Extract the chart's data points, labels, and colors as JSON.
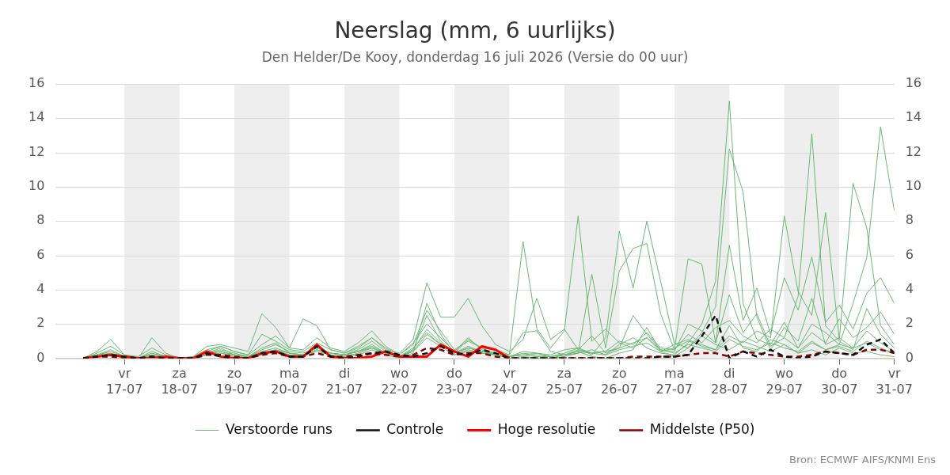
{
  "chart_data": {
    "type": "line",
    "title": "Neerslag (mm, 6 uurlijks)",
    "subtitle": "Den Helder/De Kooy, donderdag 16 juli 2026 (Versie do 00 uur)",
    "annotations": [
      "Bron: ECMWF AIFS/KNMI Ens"
    ],
    "x": [
      "2026-07-16T06:00",
      "2026-07-16T12:00",
      "2026-07-16T18:00",
      "2026-07-17T00:00",
      "2026-07-17T06:00",
      "2026-07-17T12:00",
      "2026-07-17T18:00",
      "2026-07-18T00:00",
      "2026-07-18T06:00",
      "2026-07-18T12:00",
      "2026-07-18T18:00",
      "2026-07-19T00:00",
      "2026-07-19T06:00",
      "2026-07-19T12:00",
      "2026-07-19T18:00",
      "2026-07-20T00:00",
      "2026-07-20T06:00",
      "2026-07-20T12:00",
      "2026-07-20T18:00",
      "2026-07-21T00:00",
      "2026-07-21T06:00",
      "2026-07-21T12:00",
      "2026-07-21T18:00",
      "2026-07-22T00:00",
      "2026-07-22T06:00",
      "2026-07-22T12:00",
      "2026-07-22T18:00",
      "2026-07-23T00:00",
      "2026-07-23T06:00",
      "2026-07-23T12:00",
      "2026-07-23T18:00",
      "2026-07-24T00:00",
      "2026-07-24T06:00",
      "2026-07-24T12:00",
      "2026-07-24T18:00",
      "2026-07-25T00:00",
      "2026-07-25T06:00",
      "2026-07-25T12:00",
      "2026-07-25T18:00",
      "2026-07-26T00:00",
      "2026-07-26T06:00",
      "2026-07-26T12:00",
      "2026-07-26T18:00",
      "2026-07-27T00:00",
      "2026-07-27T06:00",
      "2026-07-27T12:00",
      "2026-07-27T18:00",
      "2026-07-28T00:00",
      "2026-07-28T06:00",
      "2026-07-28T12:00",
      "2026-07-28T18:00",
      "2026-07-29T00:00",
      "2026-07-29T06:00",
      "2026-07-29T12:00",
      "2026-07-29T18:00",
      "2026-07-30T00:00",
      "2026-07-30T06:00",
      "2026-07-30T12:00",
      "2026-07-30T18:00",
      "2026-07-31T00:00"
    ],
    "series": [
      {
        "name": "Verstoorde runs",
        "color": "#6ab874",
        "values": [
          0,
          0.2,
          0.4,
          0.1,
          0,
          0.2,
          0.1,
          0,
          0,
          0.3,
          0.5,
          0.3,
          0.1,
          0.5,
          0.8,
          0.4,
          0.3,
          0.6,
          0.3,
          0.2,
          0.4,
          0.8,
          0.3,
          0.1,
          0.6,
          1.5,
          0.8,
          0.2,
          0.4,
          0.3,
          0.2,
          0.1,
          0.2,
          0.1,
          0,
          0.1,
          0.3,
          0.5,
          0.2,
          0.8,
          1.2,
          0.6,
          0.3,
          0.2,
          0.9,
          2.0,
          4.5,
          15.0,
          3.2,
          1.1,
          0.8,
          2.1,
          0.6,
          1.5,
          0.9,
          2.3,
          1.2,
          1.8,
          2.7,
          1.4
        ]
      },
      {
        "color": "#6ab874",
        "values": [
          0,
          0.1,
          0.2,
          0,
          0,
          0.1,
          0,
          0,
          0,
          0.2,
          0.3,
          0.1,
          0,
          0.2,
          0.4,
          0.2,
          0.1,
          0.5,
          0.2,
          0.1,
          0.2,
          0.5,
          0.2,
          0,
          0.3,
          3.2,
          1.4,
          0.3,
          1.1,
          0.6,
          0.2,
          0,
          0.1,
          0,
          0,
          0.2,
          0.4,
          0.1,
          0,
          0.3,
          0.5,
          1.8,
          0.4,
          0.1,
          0.6,
          1.5,
          3.0,
          12.2,
          9.7,
          2.4,
          0.5,
          1.8,
          1.0,
          3.5,
          0.8,
          1.2,
          0.6,
          1.6,
          0.9,
          0.4
        ]
      },
      {
        "color": "#6ab874",
        "values": [
          0,
          0.3,
          0.7,
          0.2,
          0.1,
          0.6,
          0.2,
          0,
          0.1,
          0.5,
          0.7,
          0.4,
          0.2,
          0.8,
          1.3,
          0.6,
          0.5,
          1.2,
          0.6,
          0.4,
          0.9,
          1.6,
          0.7,
          0.2,
          0.9,
          2.0,
          1.2,
          0.4,
          1.2,
          0.5,
          0.3,
          0.2,
          1.5,
          1.6,
          0.4,
          0.2,
          0.5,
          1.3,
          0.3,
          0.6,
          2.5,
          1.4,
          0.5,
          0.4,
          2.0,
          1.6,
          0.9,
          3.7,
          1.5,
          2.6,
          0.7,
          1.2,
          3.6,
          13.1,
          1.9,
          1.0,
          0.5,
          2.9,
          1.4,
          0.6
        ]
      },
      {
        "color": "#6ab874",
        "values": [
          0,
          0.1,
          0.3,
          0.1,
          0,
          0.4,
          0.1,
          0,
          0,
          0.3,
          0.6,
          0.2,
          0.1,
          0.6,
          0.9,
          0.3,
          0.2,
          0.7,
          0.3,
          0.2,
          0.5,
          1.0,
          0.4,
          0.1,
          0.5,
          2.5,
          1.0,
          0.3,
          0.7,
          0.4,
          0.2,
          0.1,
          0.3,
          0.2,
          0.1,
          0.3,
          0.6,
          0.3,
          0.4,
          1.0,
          0.8,
          1.5,
          0.6,
          0.5,
          1.4,
          0.9,
          1.8,
          2.2,
          1.3,
          0.9,
          1.7,
          1.2,
          0.6,
          2.0,
          1.5,
          0.8,
          3.2,
          5.9,
          13.5,
          8.6
        ]
      },
      {
        "color": "#6ab874",
        "values": [
          0,
          0.2,
          0.5,
          0.1,
          0,
          0.3,
          0.1,
          0,
          0,
          0.4,
          0.7,
          0.4,
          0.2,
          1.4,
          1.0,
          0.5,
          0.4,
          0.9,
          0.5,
          0.3,
          0.7,
          1.2,
          0.6,
          0.2,
          0.8,
          2.8,
          1.6,
          0.5,
          1.0,
          0.6,
          0.5,
          0.2,
          6.8,
          1.7,
          0.6,
          1.6,
          8.3,
          1.0,
          1.7,
          0.9,
          0.6,
          1.2,
          0.4,
          0.8,
          1.1,
          0.7,
          0.5,
          1.9,
          0.6,
          0.4,
          1.1,
          0.8,
          0.3,
          0.9,
          0.5,
          0.7,
          0.4,
          1.0,
          0.6,
          0.3
        ]
      },
      {
        "color": "#6ab874",
        "values": [
          0,
          0.1,
          0.2,
          0,
          0,
          0.1,
          0,
          0,
          0,
          0.2,
          0.3,
          0.2,
          0,
          0.3,
          0.5,
          0.2,
          0.2,
          0.4,
          0.2,
          0.1,
          0.3,
          0.6,
          0.3,
          0.1,
          0.4,
          1.2,
          0.7,
          0.2,
          0.5,
          0.3,
          0.2,
          0.1,
          0.4,
          0.3,
          0.2,
          0.5,
          0.6,
          0.2,
          1.2,
          7.4,
          4.1,
          8.0,
          4.5,
          0.9,
          0.6,
          1.3,
          0.8,
          0.5,
          1.0,
          0.7,
          0.4,
          0.8,
          0.3,
          0.5,
          0.2,
          0.6,
          0.3,
          0.4,
          0.2,
          0.1
        ]
      },
      {
        "color": "#6ab874",
        "values": [
          0,
          0.2,
          0.3,
          0.1,
          0,
          0.2,
          0.1,
          0,
          0,
          0.2,
          0.4,
          0.2,
          0.1,
          0.4,
          0.6,
          0.3,
          0.2,
          0.5,
          0.3,
          0.2,
          0.4,
          0.7,
          0.3,
          0.1,
          0.5,
          1.7,
          0.9,
          0.3,
          0.6,
          0.4,
          0.3,
          0.1,
          0.2,
          0.3,
          0.1,
          0.2,
          0.4,
          0.3,
          0.2,
          0.5,
          0.7,
          0.9,
          0.4,
          0.6,
          1.0,
          0.8,
          0.5,
          1.3,
          0.9,
          1.6,
          1.2,
          8.3,
          3.9,
          2.5,
          8.5,
          1.1,
          10.2,
          7.6,
          1.9,
          0.8
        ]
      },
      {
        "color": "#6ab874",
        "values": [
          0,
          0.4,
          1.1,
          0.2,
          0,
          1.2,
          0.3,
          0,
          0.1,
          0.7,
          0.8,
          0.6,
          0.4,
          2.6,
          1.8,
          0.6,
          2.3,
          1.9,
          0.5,
          0.3,
          0.6,
          1.2,
          0.5,
          0.3,
          1.1,
          4.4,
          2.4,
          2.4,
          3.5,
          1.9,
          0.8,
          0.4,
          1.1,
          3.5,
          1.1,
          1.7,
          0.5,
          0.3,
          0.4,
          0.6,
          0.9,
          1.2,
          0.5,
          0.3,
          0.8,
          0.6,
          0.4,
          1.1,
          0.7,
          0.5,
          0.9,
          0.6,
          0.4,
          1.0,
          0.5,
          0.8,
          0.6,
          0.9,
          0.5,
          0.3
        ]
      },
      {
        "color": "#6ab874",
        "values": [
          0,
          0.1,
          0.2,
          0,
          0,
          0.1,
          0,
          0,
          0,
          0.3,
          0.4,
          0.2,
          0.1,
          0.3,
          0.5,
          0.3,
          0.2,
          0.6,
          0.3,
          0.2,
          0.4,
          0.6,
          0.3,
          0.1,
          0.4,
          1.4,
          0.8,
          0.3,
          0.6,
          0.4,
          0.2,
          0.1,
          0.2,
          0.1,
          0.1,
          0.2,
          0.3,
          4.9,
          0.6,
          5.1,
          6.4,
          6.7,
          2.6,
          0.5,
          5.8,
          5.5,
          0.9,
          6.6,
          2.2,
          4.1,
          1.4,
          4.7,
          2.8,
          5.9,
          2.1,
          3.1,
          1.7,
          3.8,
          4.7,
          3.2
        ]
      },
      {
        "name": "Controle",
        "color": "#111111",
        "line_style": "dashed",
        "values": [
          0,
          0.1,
          0.2,
          0.1,
          0,
          0.1,
          0,
          0,
          0,
          0.3,
          0.1,
          0,
          0,
          0.3,
          0.4,
          0.1,
          0.1,
          0.7,
          0.1,
          0,
          0.1,
          0.3,
          0.4,
          0.2,
          0.1,
          0.3,
          0.7,
          0.3,
          0.2,
          0.5,
          0.3,
          0,
          0,
          0,
          0,
          0,
          0,
          0,
          0,
          0,
          0,
          0,
          0.1,
          0.1,
          0.2,
          1.3,
          2.5,
          0,
          0.4,
          0.1,
          0.5,
          0.1,
          0,
          0.1,
          0.4,
          0.3,
          0.2,
          0.8,
          1.1,
          0.3
        ]
      },
      {
        "name": "Hoge resolutie",
        "color": "#ff0000",
        "values": [
          0,
          0.1,
          0.2,
          0.1,
          0,
          0,
          0.1,
          0,
          0,
          0.4,
          0.1,
          0,
          0,
          0.3,
          0.4,
          0.1,
          0.1,
          0.8,
          0.1,
          0,
          0,
          0.1,
          0.4,
          0.1,
          0.1,
          0.1,
          0.8,
          0.4,
          0.1,
          0.7,
          0.5,
          0,
          null,
          null,
          null,
          null,
          null,
          null,
          null,
          null,
          null,
          null,
          null,
          null,
          null,
          null,
          null,
          null,
          null,
          null,
          null,
          null,
          null,
          null,
          null,
          null,
          null,
          null,
          null,
          null
        ]
      },
      {
        "name": "Middelste (P50)",
        "color": "#8b0000",
        "line_style": "dashed",
        "values": [
          0,
          0.1,
          0.1,
          0,
          0,
          0.1,
          0,
          0,
          0,
          0.2,
          0.2,
          0.1,
          0,
          0.2,
          0.3,
          0.1,
          0.1,
          0.3,
          0.1,
          0.1,
          0.2,
          0.3,
          0.2,
          0.1,
          0.2,
          0.6,
          0.5,
          0.2,
          0.3,
          0.3,
          0.1,
          0,
          0,
          0,
          0,
          0,
          0,
          0,
          0,
          0,
          0.1,
          0.1,
          0.1,
          0.1,
          0.2,
          0.3,
          0.3,
          0.1,
          0.4,
          0.3,
          0.2,
          0.1,
          0.1,
          0.2,
          0.4,
          0.3,
          0.2,
          0.5,
          0.5,
          0.3
        ]
      }
    ],
    "xlim": [
      "2026-07-15T18:00",
      "2026-07-31T00:00"
    ],
    "xticks": [
      {
        "value": "2026-07-17T00:00",
        "label": "vr\n17-07"
      },
      {
        "value": "2026-07-18T00:00",
        "label": "za\n18-07"
      },
      {
        "value": "2026-07-19T00:00",
        "label": "zo\n19-07"
      },
      {
        "value": "2026-07-20T00:00",
        "label": "ma\n20-07"
      },
      {
        "value": "2026-07-21T00:00",
        "label": "di\n21-07"
      },
      {
        "value": "2026-07-22T00:00",
        "label": "wo\n22-07"
      },
      {
        "value": "2026-07-23T00:00",
        "label": "do\n23-07"
      },
      {
        "value": "2026-07-24T00:00",
        "label": "vr\n24-07"
      },
      {
        "value": "2026-07-25T00:00",
        "label": "za\n25-07"
      },
      {
        "value": "2026-07-26T00:00",
        "label": "zo\n26-07"
      },
      {
        "value": "2026-07-27T00:00",
        "label": "ma\n27-07"
      },
      {
        "value": "2026-07-28T00:00",
        "label": "di\n28-07"
      },
      {
        "value": "2026-07-29T00:00",
        "label": "wo\n29-07"
      },
      {
        "value": "2026-07-30T00:00",
        "label": "do\n30-07"
      },
      {
        "value": "2026-07-31T00:00",
        "label": "vr\n31-07"
      }
    ],
    "ylim": [
      0,
      16
    ],
    "yticks": [
      0,
      2,
      4,
      6,
      8,
      10,
      12,
      14,
      16
    ],
    "y2lim": [
      0,
      16
    ],
    "y2ticks": [
      0,
      2,
      4,
      6,
      8,
      10,
      12,
      14,
      16
    ],
    "bands": [
      {
        "axis": "x",
        "from": "2026-07-17T00:00",
        "to": "2026-07-18T00:00",
        "color": "#eeeeee"
      },
      {
        "axis": "x",
        "from": "2026-07-19T00:00",
        "to": "2026-07-20T00:00",
        "color": "#eeeeee"
      },
      {
        "axis": "x",
        "from": "2026-07-21T00:00",
        "to": "2026-07-22T00:00",
        "color": "#eeeeee"
      },
      {
        "axis": "x",
        "from": "2026-07-23T00:00",
        "to": "2026-07-24T00:00",
        "color": "#eeeeee"
      },
      {
        "axis": "x",
        "from": "2026-07-25T00:00",
        "to": "2026-07-26T00:00",
        "color": "#eeeeee"
      },
      {
        "axis": "x",
        "from": "2026-07-27T00:00",
        "to": "2026-07-28T00:00",
        "color": "#eeeeee"
      },
      {
        "axis": "x",
        "from": "2026-07-29T00:00",
        "to": "2026-07-30T00:00",
        "color": "#eeeeee"
      }
    ],
    "grid": "y",
    "legend": "bottom",
    "marker": "none",
    "line_style": "solid"
  }
}
